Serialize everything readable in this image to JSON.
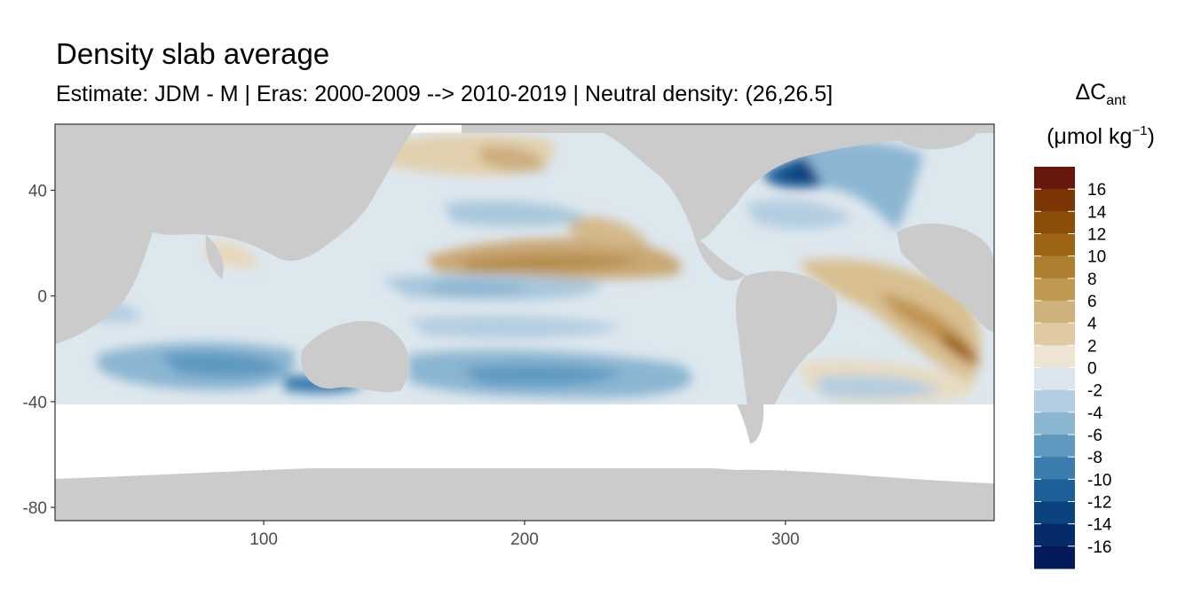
{
  "chart_data": {
    "type": "heatmap",
    "title": "Density slab average",
    "subtitle": "Estimate: JDM - M | Eras: 2000-2009 --> 2010-2019 | Neutral density: (26,26.5]",
    "xlabel": "",
    "ylabel": "",
    "xlim": [
      20,
      380
    ],
    "ylim": [
      -85,
      65
    ],
    "x_ticks": [
      100,
      200,
      300
    ],
    "y_ticks": [
      40,
      0,
      -40,
      -80
    ],
    "grid": true,
    "legend": {
      "title_main": "ΔC",
      "title_sub": "ant",
      "units_prefix": "(μmol kg",
      "units_sup": "−1",
      "units_suffix": ")",
      "position": "right",
      "labels": [
        "16",
        "14",
        "12",
        "10",
        "8",
        "6",
        "4",
        "2",
        "0",
        "-2",
        "-4",
        "-6",
        "-8",
        "-10",
        "-12",
        "-14",
        "-16"
      ],
      "colors": [
        "#67180a",
        "#7d3506",
        "#8c4e09",
        "#9d6415",
        "#ae7f30",
        "#bf994f",
        "#cfb27b",
        "#dfcaa3",
        "#ede4d4",
        "#dbe5ed",
        "#b4cee1",
        "#8bb6d2",
        "#5f99c0",
        "#3a7cae",
        "#1d5f98",
        "#0a437f",
        "#062b6a",
        "#041a5a"
      ]
    }
  }
}
